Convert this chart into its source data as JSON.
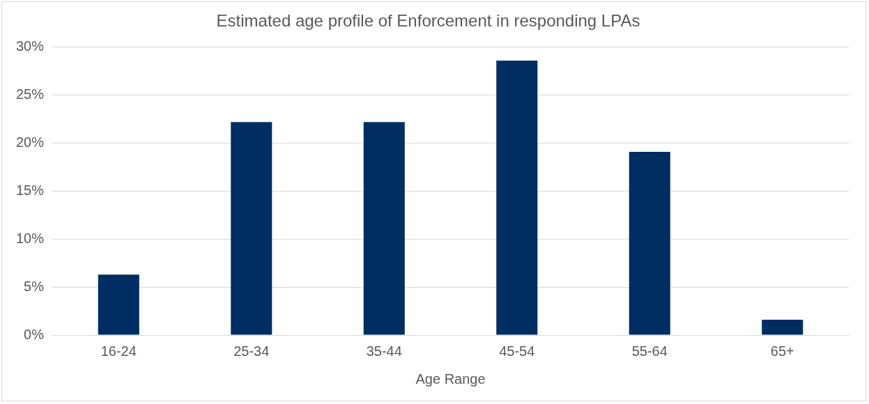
{
  "chart_data": {
    "type": "bar",
    "title": "Estimated age profile of Enforcement in responding LPAs",
    "xlabel": "Age Range",
    "categories": [
      "16-24",
      "25-34",
      "35-44",
      "45-54",
      "55-64",
      "65+"
    ],
    "values": [
      6.3,
      22.2,
      22.2,
      28.6,
      19.1,
      1.6
    ],
    "color": "#002d62",
    "ylim": [
      0,
      30
    ],
    "yticks": [
      {
        "value": 0,
        "label": "0%"
      },
      {
        "value": 5,
        "label": "5%"
      },
      {
        "value": 10,
        "label": "10%"
      },
      {
        "value": 15,
        "label": "15%"
      },
      {
        "value": 20,
        "label": "20%"
      },
      {
        "value": 25,
        "label": "25%"
      },
      {
        "value": 30,
        "label": "30%"
      }
    ],
    "grid": "y",
    "legend": false
  }
}
